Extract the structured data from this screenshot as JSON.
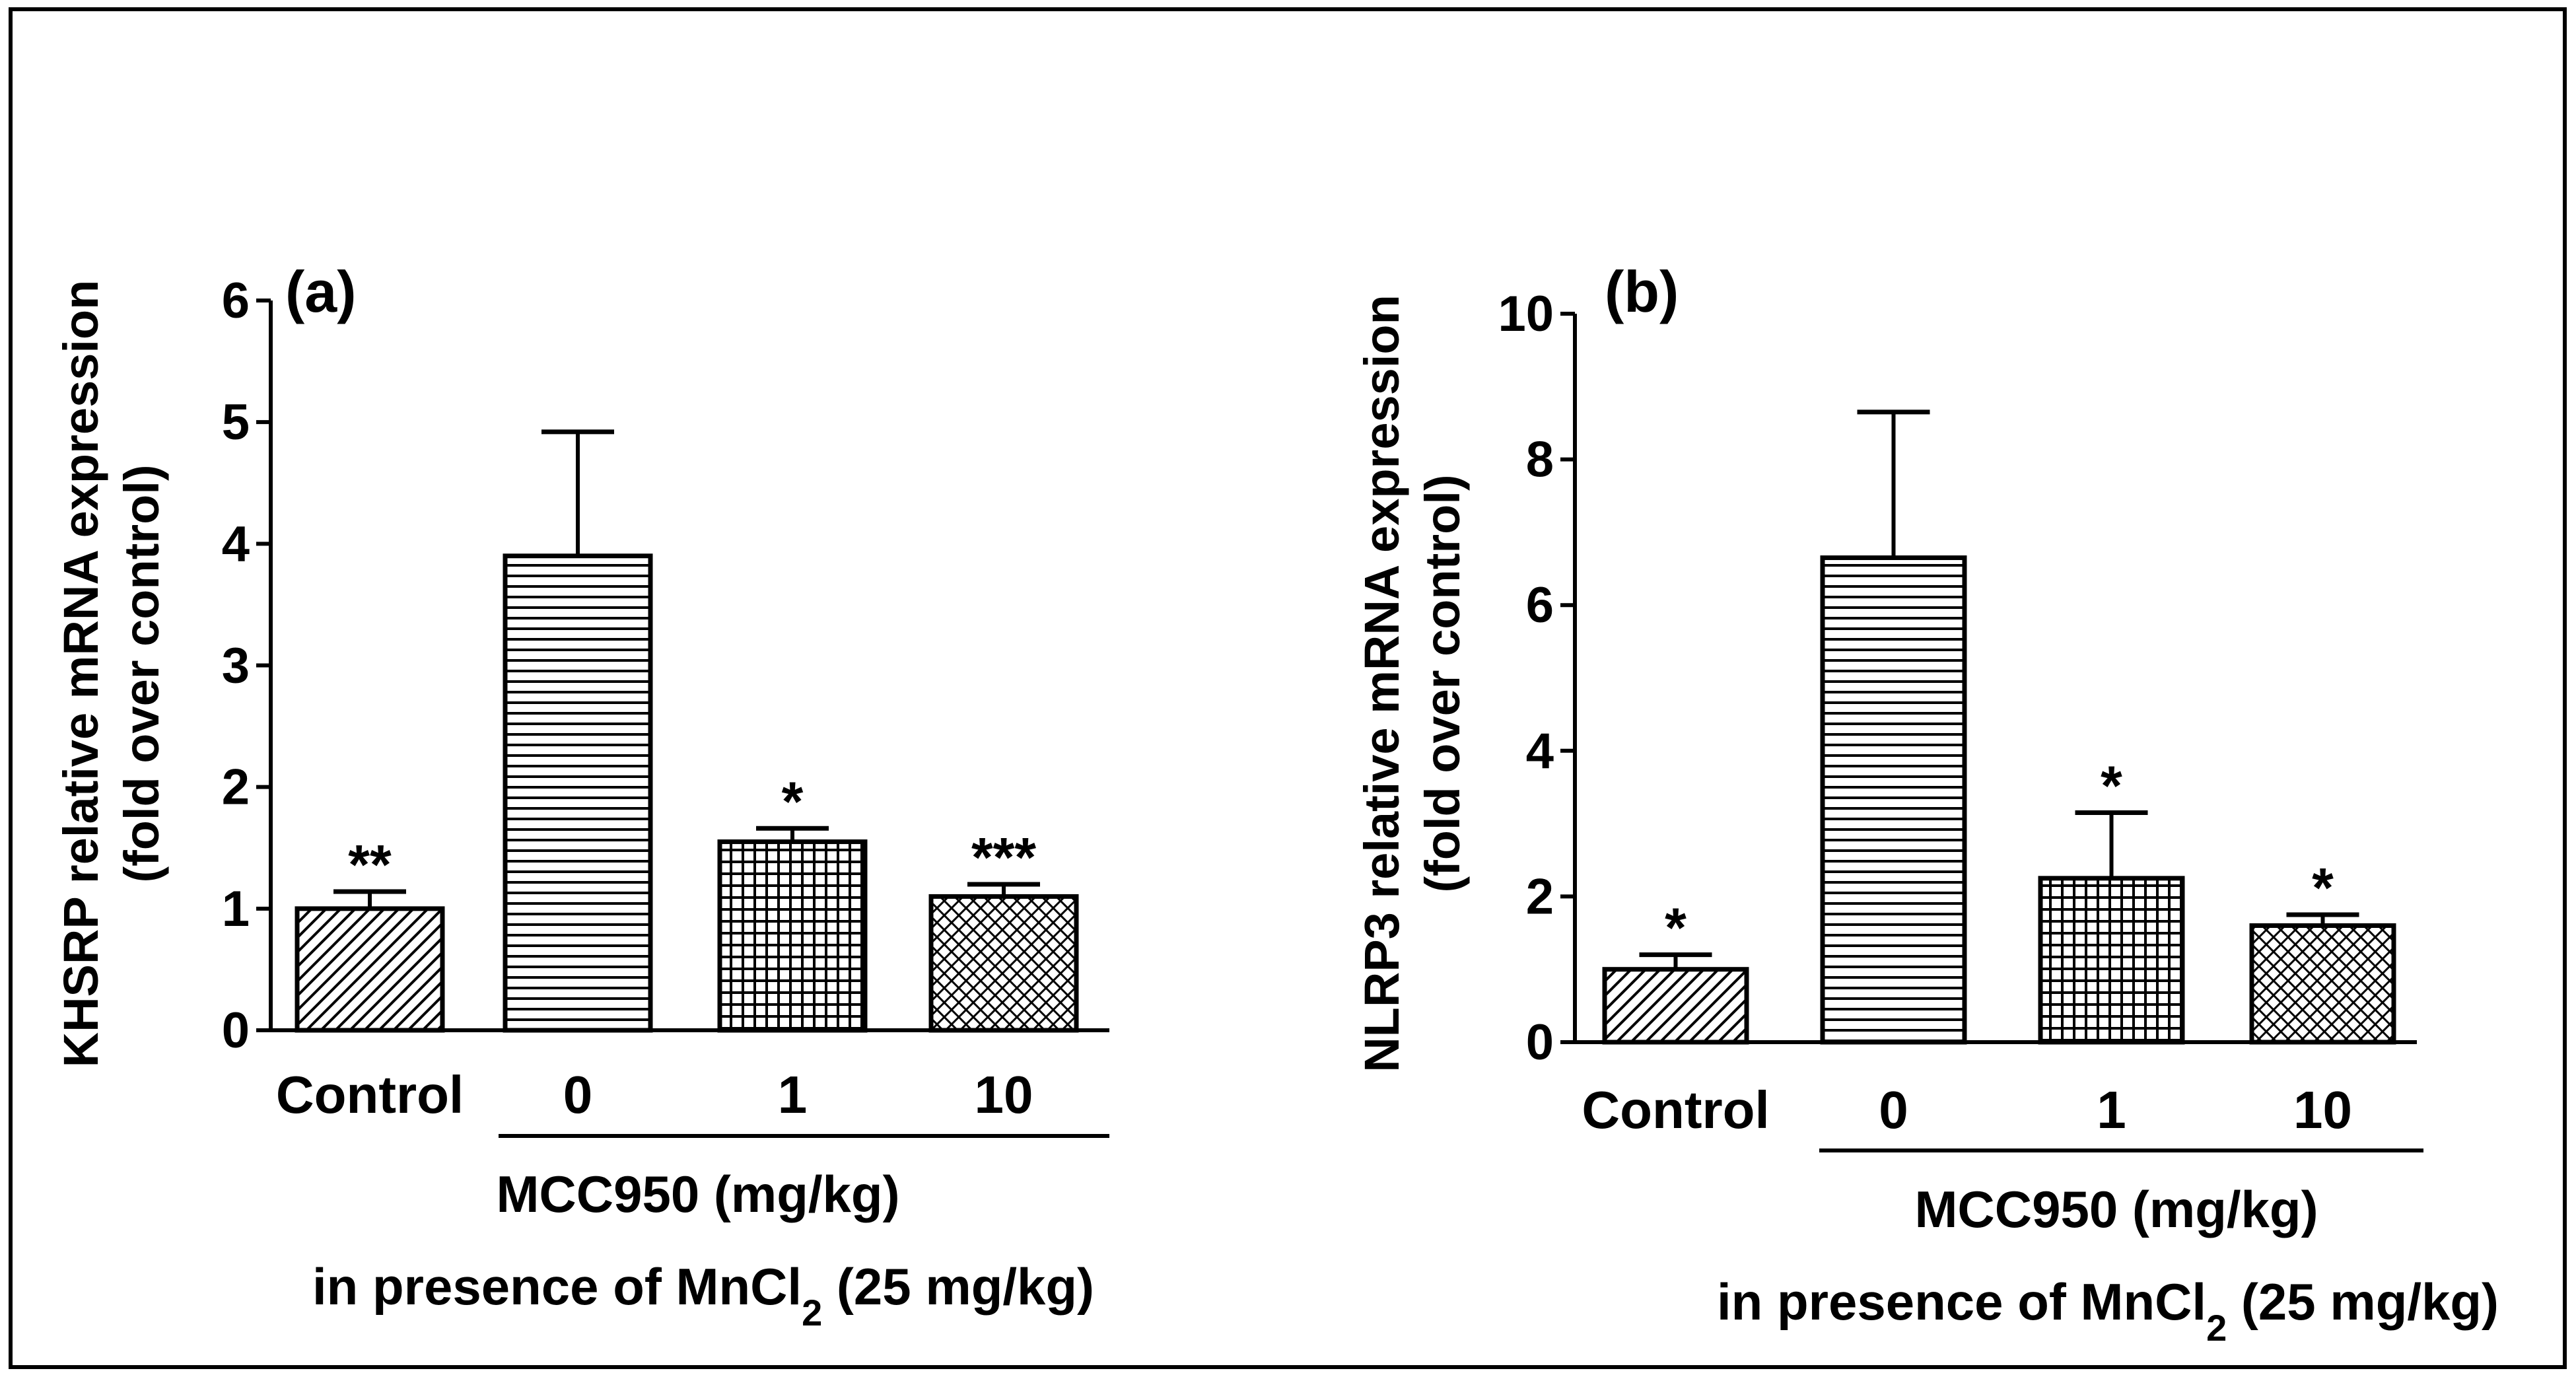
{
  "chart_data": [
    {
      "panel": "(a)",
      "type": "bar",
      "ylabel_line1": "KHSRP relative mRNA expression",
      "ylabel_line2": "(fold over control)",
      "ylim": [
        0,
        6
      ],
      "yticks": [
        0,
        1,
        2,
        3,
        4,
        5,
        6
      ],
      "categories": [
        "Control",
        "0",
        "1",
        "10"
      ],
      "values": [
        1.0,
        3.9,
        1.55,
        1.1
      ],
      "errors": [
        0.14,
        1.02,
        0.11,
        0.1
      ],
      "significance": [
        "**",
        "",
        "*",
        "***"
      ],
      "patterns": [
        "diagonal",
        "horizontal",
        "grid",
        "crosshatch"
      ],
      "group_label": "MCC950 (mg/kg)",
      "condition_prefix": "in presence of MnCl",
      "condition_sub": "2",
      "condition_suffix": " (25 mg/kg)"
    },
    {
      "panel": "(b)",
      "type": "bar",
      "ylabel_line1": "NLRP3  relative mRNA expression",
      "ylabel_line2": "(fold over control)",
      "ylim": [
        0,
        10
      ],
      "yticks": [
        0,
        2,
        4,
        6,
        8,
        10
      ],
      "categories": [
        "Control",
        "0",
        "1",
        "10"
      ],
      "values": [
        1.0,
        6.65,
        2.25,
        1.6
      ],
      "errors": [
        0.2,
        2.0,
        0.9,
        0.15
      ],
      "significance": [
        "*",
        "",
        "*",
        "*"
      ],
      "patterns": [
        "diagonal",
        "horizontal",
        "grid",
        "crosshatch"
      ],
      "group_label": "MCC950 (mg/kg)",
      "condition_prefix": "in presence of MnCl",
      "condition_sub": "2",
      "condition_suffix": " (25 mg/kg)"
    }
  ]
}
